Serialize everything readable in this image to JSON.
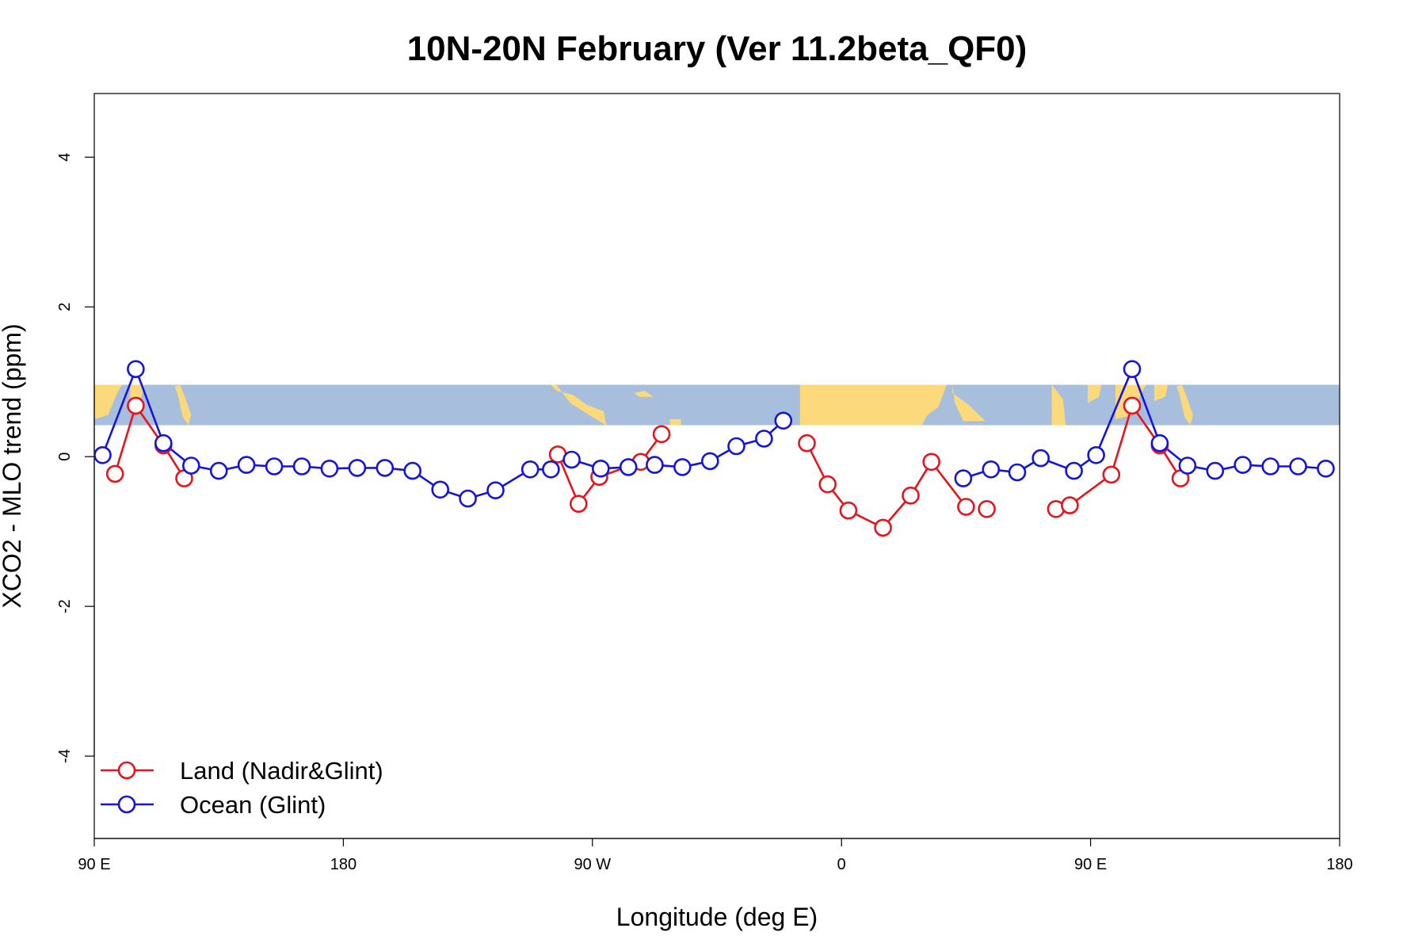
{
  "chart_data": {
    "type": "line",
    "title": "10N-20N February (Ver 11.2beta_QF0)",
    "xlabel": "Longitude (deg E)",
    "ylabel": "XCO2 - MLO trend (ppm)",
    "xlim": [
      90,
      540
    ],
    "ylim": [
      -5.1,
      4.85
    ],
    "x_ticks": [
      {
        "value": 90,
        "label": "90 E"
      },
      {
        "value": 180,
        "label": "180"
      },
      {
        "value": 270,
        "label": "90 W"
      },
      {
        "value": 360,
        "label": "0"
      },
      {
        "value": 450,
        "label": "90 E"
      },
      {
        "value": 540,
        "label": "180"
      }
    ],
    "y_ticks": [
      {
        "value": -4,
        "label": "-4"
      },
      {
        "value": -2,
        "label": "-2"
      },
      {
        "value": 0,
        "label": "0"
      },
      {
        "value": 2,
        "label": "2"
      },
      {
        "value": 4,
        "label": "4"
      }
    ],
    "grid": false,
    "legend": {
      "position": "bottom-left"
    },
    "map_strip": {
      "y_range": [
        0.42,
        0.96
      ],
      "ocean_color": "#a7bfdc",
      "land_color": "#fcd97a"
    },
    "series": [
      {
        "name": "Land (Nadir&Glint)",
        "color": "#e8141b",
        "points": [
          {
            "x": 97.5,
            "y": -0.23
          },
          {
            "x": 105,
            "y": 0.68
          },
          {
            "x": 115,
            "y": 0.15
          },
          {
            "x": 122.5,
            "y": -0.29
          },
          null,
          {
            "x": 257.5,
            "y": 0.03
          },
          {
            "x": 265,
            "y": -0.63
          },
          {
            "x": 272.5,
            "y": -0.27
          },
          {
            "x": 287.5,
            "y": -0.07
          },
          {
            "x": 295,
            "y": 0.3
          },
          null,
          {
            "x": 347.5,
            "y": 0.18
          },
          {
            "x": 355,
            "y": -0.37
          },
          {
            "x": 362.5,
            "y": -0.72
          },
          {
            "x": 375,
            "y": -0.95
          },
          {
            "x": 385,
            "y": -0.52
          },
          {
            "x": 392.5,
            "y": -0.07
          },
          {
            "x": 405,
            "y": -0.67
          },
          null,
          {
            "x": 412.5,
            "y": -0.7
          },
          null,
          {
            "x": 437.5,
            "y": -0.7
          },
          {
            "x": 442.5,
            "y": -0.65
          },
          {
            "x": 457.5,
            "y": -0.24
          },
          {
            "x": 465,
            "y": 0.68
          },
          {
            "x": 475,
            "y": 0.15
          },
          {
            "x": 482.5,
            "y": -0.29
          }
        ]
      },
      {
        "name": "Ocean (Glint)",
        "color": "#1414e0",
        "points": [
          {
            "x": 93,
            "y": 0.02
          },
          {
            "x": 105,
            "y": 1.17
          },
          {
            "x": 115,
            "y": 0.18
          },
          {
            "x": 125,
            "y": -0.12
          },
          {
            "x": 135,
            "y": -0.19
          },
          {
            "x": 145,
            "y": -0.11
          },
          {
            "x": 155,
            "y": -0.13
          },
          {
            "x": 165,
            "y": -0.13
          },
          {
            "x": 175,
            "y": -0.16
          },
          {
            "x": 185,
            "y": -0.15
          },
          {
            "x": 195,
            "y": -0.15
          },
          {
            "x": 205,
            "y": -0.19
          },
          {
            "x": 215,
            "y": -0.44
          },
          {
            "x": 225,
            "y": -0.56
          },
          {
            "x": 235,
            "y": -0.45
          },
          {
            "x": 247.5,
            "y": -0.17
          },
          {
            "x": 255,
            "y": -0.17
          },
          null,
          {
            "x": 262.5,
            "y": -0.04
          },
          {
            "x": 273,
            "y": -0.16
          },
          {
            "x": 283,
            "y": -0.14
          },
          {
            "x": 292.5,
            "y": -0.11
          },
          {
            "x": 302.5,
            "y": -0.14
          },
          {
            "x": 312.5,
            "y": -0.06
          },
          {
            "x": 322,
            "y": 0.14
          },
          {
            "x": 332,
            "y": 0.24
          },
          {
            "x": 339,
            "y": 0.48
          },
          null,
          {
            "x": 404,
            "y": -0.29
          },
          {
            "x": 414,
            "y": -0.17
          },
          {
            "x": 423.5,
            "y": -0.21
          },
          {
            "x": 432,
            "y": -0.02
          },
          {
            "x": 444,
            "y": -0.19
          },
          {
            "x": 452,
            "y": 0.02
          },
          {
            "x": 465,
            "y": 1.17
          },
          {
            "x": 475,
            "y": 0.18
          },
          {
            "x": 485,
            "y": -0.12
          },
          {
            "x": 495,
            "y": -0.19
          },
          {
            "x": 505,
            "y": -0.11
          },
          {
            "x": 515,
            "y": -0.13
          },
          {
            "x": 525,
            "y": -0.13
          },
          {
            "x": 535,
            "y": -0.16
          }
        ]
      }
    ]
  }
}
